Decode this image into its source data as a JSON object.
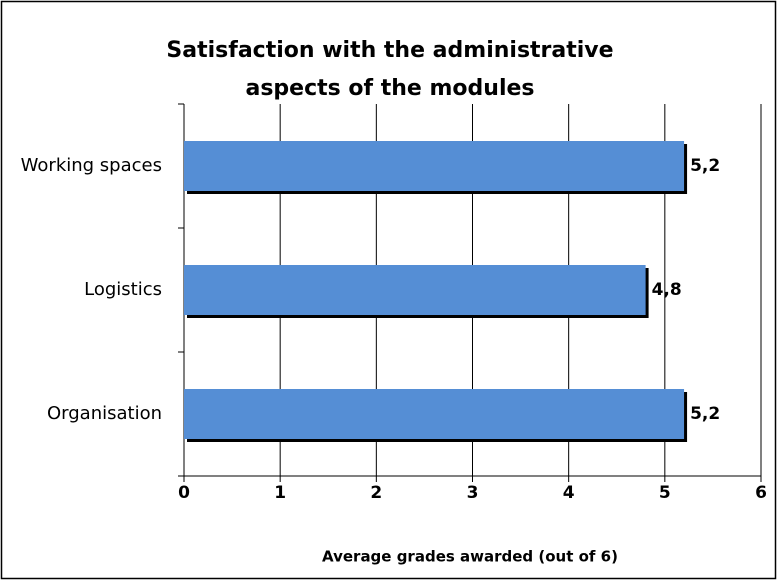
{
  "chart_data": {
    "type": "bar",
    "orientation": "horizontal",
    "title": "Satisfaction with the administrative aspects of the modules",
    "x_label": "Average grades awarded (out of 6)",
    "categories": [
      "Organisation",
      "Logistics",
      "Working spaces"
    ],
    "values": [
      5.2,
      4.8,
      5.2
    ],
    "value_labels": [
      "5,2",
      "4,8",
      "5,2"
    ],
    "color": "#558ed5",
    "xlim": [
      0,
      6
    ],
    "xticks": [
      0,
      1,
      2,
      3,
      4,
      5,
      6
    ],
    "grid": true
  }
}
